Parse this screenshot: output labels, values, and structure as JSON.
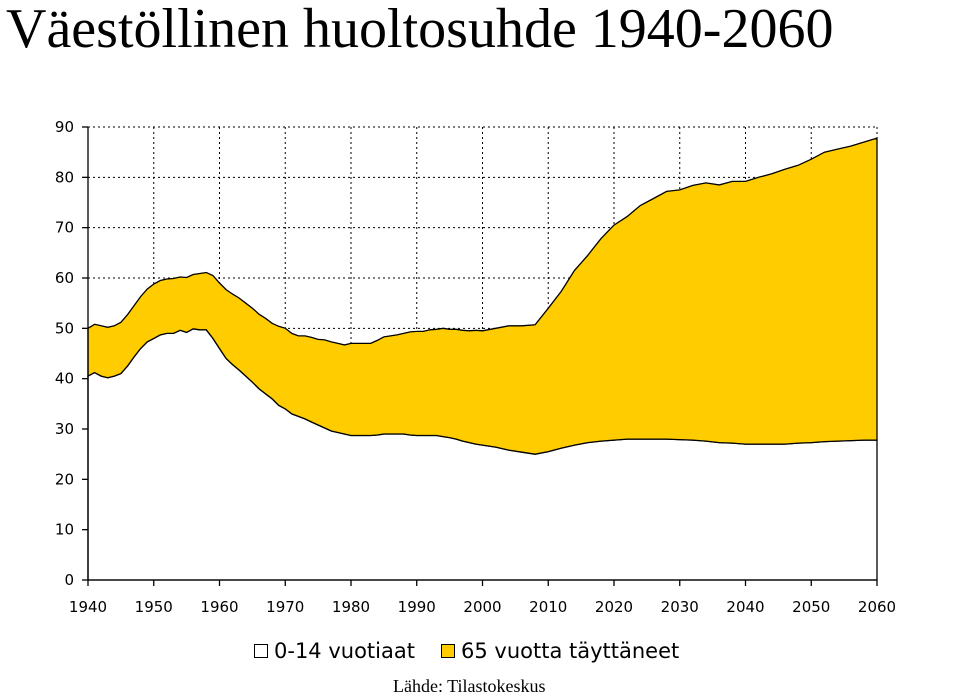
{
  "title": "Väestöllinen huoltosuhde 1940-2060",
  "source": "Lähde: Tilastokeskus",
  "chart_data": {
    "type": "area",
    "stacked": true,
    "title": "Väestöllinen huoltosuhde 1940-2060",
    "xlabel": "",
    "ylabel": "",
    "xlim": [
      1940,
      2060
    ],
    "ylim": [
      0,
      90
    ],
    "x_ticks": [
      "1940",
      "1950",
      "1960",
      "1970",
      "1980",
      "1990",
      "2000",
      "2010",
      "2020",
      "2030",
      "2040",
      "2050",
      "2060"
    ],
    "y_ticks": [
      "0",
      "10",
      "20",
      "30",
      "40",
      "50",
      "60",
      "70",
      "80",
      "90"
    ],
    "grid": "vertical and horizontal dotted lines",
    "legend_position": "bottom",
    "colors": {
      "series1": "#ffffff",
      "series2": "#ffcc00"
    },
    "x": [
      1940,
      1941,
      1942,
      1943,
      1944,
      1945,
      1946,
      1947,
      1948,
      1949,
      1950,
      1951,
      1952,
      1953,
      1954,
      1955,
      1956,
      1957,
      1958,
      1959,
      1960,
      1961,
      1962,
      1963,
      1964,
      1965,
      1966,
      1967,
      1968,
      1969,
      1970,
      1971,
      1972,
      1973,
      1974,
      1975,
      1976,
      1977,
      1978,
      1979,
      1980,
      1981,
      1982,
      1983,
      1984,
      1985,
      1986,
      1987,
      1988,
      1989,
      1990,
      1991,
      1992,
      1993,
      1994,
      1995,
      1996,
      1997,
      1998,
      1999,
      2000,
      2002,
      2004,
      2006,
      2008,
      2010,
      2012,
      2014,
      2016,
      2018,
      2020,
      2022,
      2024,
      2026,
      2028,
      2030,
      2032,
      2034,
      2036,
      2038,
      2040,
      2042,
      2044,
      2046,
      2048,
      2050,
      2052,
      2054,
      2056,
      2058,
      2060
    ],
    "series": [
      {
        "name": "0-14 vuotiaat",
        "values": [
          40.5,
          41.2,
          40.5,
          40.2,
          40.5,
          41,
          42.5,
          44.3,
          46,
          47.3,
          48,
          48.7,
          49,
          49,
          49.6,
          49.2,
          49.9,
          49.7,
          49.7,
          48,
          46,
          44,
          42.8,
          41.7,
          40.5,
          39.3,
          38,
          37,
          36,
          34.7,
          34,
          33,
          32.5,
          32,
          31.4,
          30.8,
          30.2,
          29.6,
          29.3,
          29,
          28.7,
          28.7,
          28.7,
          28.7,
          28.8,
          29,
          29,
          29,
          29,
          28.8,
          28.7,
          28.7,
          28.7,
          28.7,
          28.5,
          28.3,
          28,
          27.6,
          27.3,
          27,
          26.8,
          26.4,
          25.8,
          25.4,
          25,
          25.5,
          26.2,
          26.8,
          27.3,
          27.6,
          27.8,
          28,
          28,
          28,
          28,
          27.9,
          27.8,
          27.6,
          27.3,
          27.2,
          27,
          27,
          27,
          27,
          27.2,
          27.3,
          27.5,
          27.6,
          27.7,
          27.8,
          27.8
        ]
      },
      {
        "name": "65 vuotta täyttäneet",
        "values": [
          9.5,
          9.6,
          10,
          10,
          10,
          10.2,
          10.2,
          10.2,
          10.3,
          10.5,
          10.8,
          10.8,
          10.8,
          10.9,
          10.6,
          10.9,
          10.8,
          11.2,
          11.4,
          12.5,
          13,
          13.7,
          14,
          14.3,
          14.5,
          14.7,
          14.8,
          15,
          15,
          15.7,
          16,
          16,
          16,
          16.5,
          16.8,
          17,
          17.5,
          17.7,
          17.7,
          17.7,
          18.3,
          18.3,
          18.3,
          18.3,
          18.8,
          19.3,
          19.5,
          19.7,
          20,
          20.5,
          20.7,
          20.7,
          21,
          21.1,
          21.5,
          21.5,
          21.8,
          22,
          22.2,
          22.6,
          22.7,
          23.6,
          24.7,
          25.1,
          25.7,
          28.5,
          31.2,
          34.7,
          37.2,
          40.2,
          42.7,
          44.2,
          46.4,
          47.8,
          49.2,
          49.6,
          50.6,
          51.3,
          51.2,
          52,
          52.2,
          53,
          53.7,
          54.6,
          55.2,
          56.3,
          57.5,
          58,
          58.5,
          59.2,
          60
        ]
      }
    ]
  }
}
